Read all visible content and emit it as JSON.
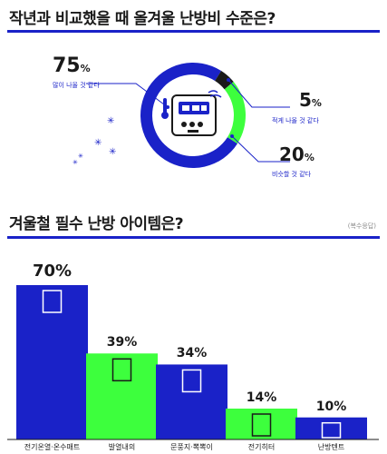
{
  "section1": {
    "title": "작년과 비교했을 때 올겨울 난방비 수준은?"
  },
  "section2": {
    "title": "겨울철 필수 난방 아이템은?",
    "note": "(복수응답)"
  },
  "colors": {
    "blue": "#1a22c8",
    "green": "#3dff3d",
    "dark": "#1a1a1a",
    "gray": "#8a8a8a"
  },
  "chart_data": [
    {
      "type": "pie",
      "title": "작년과 비교했을 때 올겨울 난방비 수준은?",
      "slices": [
        {
          "label": "많이 나올 것 같다",
          "value": 75,
          "display": "75",
          "unit": "%",
          "color": "#1a22c8"
        },
        {
          "label": "적게 나올 것 같다",
          "value": 5,
          "display": "5",
          "unit": "%",
          "color": "#1a1a1a"
        },
        {
          "label": "비슷할 것 같다",
          "value": 20,
          "display": "20",
          "unit": "%",
          "color": "#3dff3d"
        }
      ]
    },
    {
      "type": "bar",
      "title": "겨울철 필수 난방 아이템은?",
      "categories": [
        "전기온열·온수매트",
        "발열내의",
        "문풍지·뽁뽁이",
        "전기히터",
        "난방텐트"
      ],
      "values": [
        70,
        39,
        34,
        14,
        10
      ],
      "value_labels": [
        "70%",
        "39%",
        "34%",
        "14%",
        "10%"
      ],
      "colors": [
        "#1a22c8",
        "#3dff3d",
        "#1a22c8",
        "#3dff3d",
        "#1a22c8"
      ],
      "ylim": [
        0,
        70
      ]
    }
  ]
}
